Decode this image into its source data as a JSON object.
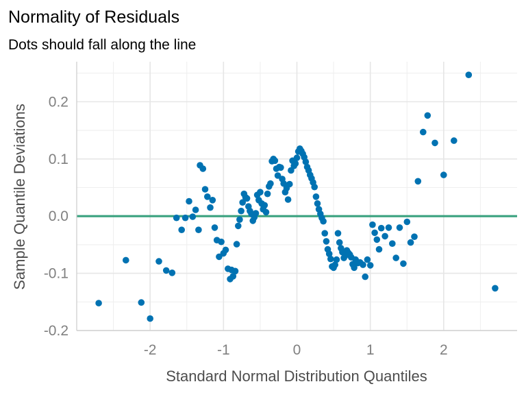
{
  "chart_data": {
    "type": "scatter",
    "title": "Normality of Residuals",
    "subtitle": "Dots should fall along the line",
    "xlabel": "Standard Normal Distribution Quantiles",
    "ylabel": "Sample Quantile Deviations",
    "xlim": [
      -3,
      3
    ],
    "ylim": [
      -0.2,
      0.27
    ],
    "x_ticks": [
      -2,
      -1,
      0,
      1,
      2
    ],
    "x_tick_labels": [
      "-2",
      "-1",
      "0",
      "1",
      "2"
    ],
    "y_ticks": [
      -0.2,
      -0.1,
      0.0,
      0.1,
      0.2
    ],
    "y_tick_labels": [
      "-0.2",
      "-0.1",
      "0.0",
      "0.1",
      "0.2"
    ],
    "grid": true,
    "reference_line": {
      "y": 0,
      "color": "#3aa27f"
    },
    "point_color": "#0072b2",
    "points": [
      [
        -2.7,
        -0.152
      ],
      [
        -2.33,
        -0.077
      ],
      [
        -2.12,
        -0.151
      ],
      [
        -2.0,
        -0.179
      ],
      [
        -1.88,
        -0.079
      ],
      [
        -1.78,
        -0.095
      ],
      [
        -1.7,
        -0.099
      ],
      [
        -1.64,
        -0.003
      ],
      [
        -1.57,
        -0.024
      ],
      [
        -1.52,
        -0.003
      ],
      [
        -1.47,
        0.026
      ],
      [
        -1.42,
        -0.001
      ],
      [
        -1.38,
        0.011
      ],
      [
        -1.34,
        -0.024
      ],
      [
        -1.32,
        0.089
      ],
      [
        -1.28,
        0.083
      ],
      [
        -1.25,
        0.047
      ],
      [
        -1.22,
        0.034
      ],
      [
        -1.18,
        0.015
      ],
      [
        -1.15,
        0.028
      ],
      [
        -1.12,
        -0.02
      ],
      [
        -1.09,
        -0.042
      ],
      [
        -1.06,
        -0.071
      ],
      [
        -1.03,
        -0.045
      ],
      [
        -1.0,
        -0.065
      ],
      [
        -0.97,
        -0.059
      ],
      [
        -0.94,
        -0.092
      ],
      [
        -0.91,
        -0.11
      ],
      [
        -0.89,
        -0.094
      ],
      [
        -0.87,
        -0.105
      ],
      [
        -0.84,
        -0.096
      ],
      [
        -0.82,
        -0.049
      ],
      [
        -0.8,
        -0.017
      ],
      [
        -0.78,
        -0.006
      ],
      [
        -0.76,
        0.009
      ],
      [
        -0.74,
        0.024
      ],
      [
        -0.72,
        0.039
      ],
      [
        -0.7,
        0.033
      ],
      [
        -0.68,
        0.031
      ],
      [
        -0.66,
        0.017
      ],
      [
        -0.64,
        0.009
      ],
      [
        -0.62,
        0.004
      ],
      [
        -0.6,
        -0.008
      ],
      [
        -0.58,
        -0.002
      ],
      [
        -0.56,
        0.005
      ],
      [
        -0.54,
        0.037
      ],
      [
        -0.52,
        0.028
      ],
      [
        -0.5,
        0.042
      ],
      [
        -0.48,
        0.022
      ],
      [
        -0.46,
        0.012
      ],
      [
        -0.44,
        0.019
      ],
      [
        -0.42,
        0.007
      ],
      [
        -0.4,
        0.039
      ],
      [
        -0.38,
        0.052
      ],
      [
        -0.36,
        0.057
      ],
      [
        -0.34,
        0.096
      ],
      [
        -0.32,
        0.1
      ],
      [
        -0.3,
        0.097
      ],
      [
        -0.28,
        0.083
      ],
      [
        -0.26,
        0.071
      ],
      [
        -0.24,
        0.086
      ],
      [
        -0.22,
        0.085
      ],
      [
        -0.2,
        0.065
      ],
      [
        -0.18,
        0.057
      ],
      [
        -0.16,
        0.042
      ],
      [
        -0.14,
        0.049
      ],
      [
        -0.12,
        0.029
      ],
      [
        -0.1,
        0.056
      ],
      [
        -0.08,
        0.08
      ],
      [
        -0.06,
        0.097
      ],
      [
        -0.04,
        0.088
      ],
      [
        -0.02,
        0.092
      ],
      [
        0.0,
        0.102
      ],
      [
        0.02,
        0.113
      ],
      [
        0.04,
        0.118
      ],
      [
        0.06,
        0.114
      ],
      [
        0.08,
        0.109
      ],
      [
        0.1,
        0.103
      ],
      [
        0.12,
        0.095
      ],
      [
        0.14,
        0.086
      ],
      [
        0.16,
        0.08
      ],
      [
        0.18,
        0.072
      ],
      [
        0.2,
        0.066
      ],
      [
        0.22,
        0.059
      ],
      [
        0.24,
        0.051
      ],
      [
        0.26,
        0.034
      ],
      [
        0.28,
        0.022
      ],
      [
        0.3,
        0.012
      ],
      [
        0.32,
        0.004
      ],
      [
        0.34,
        -0.003
      ],
      [
        0.36,
        -0.009
      ],
      [
        0.38,
        -0.03
      ],
      [
        0.4,
        -0.044
      ],
      [
        0.42,
        -0.058
      ],
      [
        0.44,
        -0.066
      ],
      [
        0.46,
        -0.075
      ],
      [
        0.48,
        -0.088
      ],
      [
        0.5,
        -0.09
      ],
      [
        0.52,
        -0.085
      ],
      [
        0.54,
        -0.076
      ],
      [
        0.56,
        -0.03
      ],
      [
        0.58,
        -0.046
      ],
      [
        0.6,
        -0.056
      ],
      [
        0.62,
        -0.063
      ],
      [
        0.64,
        -0.073
      ],
      [
        0.66,
        -0.069
      ],
      [
        0.68,
        -0.06
      ],
      [
        0.7,
        -0.064
      ],
      [
        0.72,
        -0.067
      ],
      [
        0.74,
        -0.072
      ],
      [
        0.76,
        -0.084
      ],
      [
        0.78,
        -0.09
      ],
      [
        0.8,
        -0.076
      ],
      [
        0.83,
        -0.082
      ],
      [
        0.86,
        -0.081
      ],
      [
        0.9,
        -0.085
      ],
      [
        0.93,
        -0.106
      ],
      [
        0.96,
        -0.076
      ],
      [
        1.0,
        -0.086
      ],
      [
        1.03,
        -0.015
      ],
      [
        1.06,
        -0.029
      ],
      [
        1.09,
        -0.041
      ],
      [
        1.12,
        -0.058
      ],
      [
        1.15,
        -0.021
      ],
      [
        1.2,
        -0.035
      ],
      [
        1.25,
        -0.02
      ],
      [
        1.3,
        -0.048
      ],
      [
        1.35,
        -0.073
      ],
      [
        1.4,
        -0.02
      ],
      [
        1.45,
        -0.083
      ],
      [
        1.5,
        -0.01
      ],
      [
        1.55,
        -0.046
      ],
      [
        1.6,
        -0.036
      ],
      [
        1.65,
        0.061
      ],
      [
        1.72,
        0.147
      ],
      [
        1.78,
        0.176
      ],
      [
        1.88,
        0.128
      ],
      [
        2.0,
        0.072
      ],
      [
        2.14,
        0.132
      ],
      [
        2.34,
        0.247
      ],
      [
        2.7,
        -0.126
      ]
    ]
  }
}
